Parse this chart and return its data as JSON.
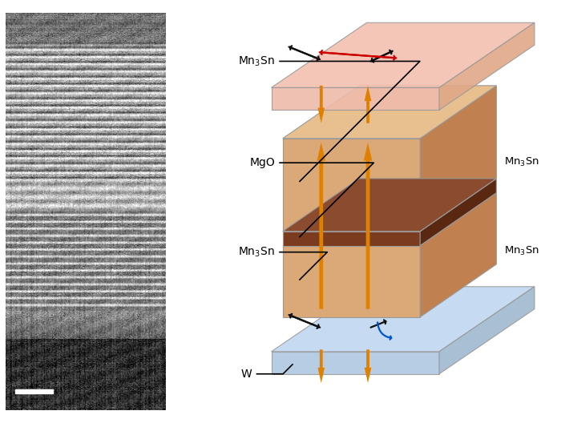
{
  "fig_width": 7.0,
  "fig_height": 5.28,
  "dpi": 100,
  "bg_color": "#ffffff",
  "mn3sn_front": "#dba878",
  "mn3sn_right": "#c08050",
  "mn3sn_top_face": "#e8c090",
  "mgo_front": "#7a3b1e",
  "mgo_right": "#5a2810",
  "mgo_top_face": "#8a4b2e",
  "top_plane_top": "#f2c0b0",
  "top_plane_front": "#eebbaa",
  "top_plane_right": "#e0a888",
  "bot_plane_top": "#c0d8f0",
  "bot_plane_front": "#b0c8e0",
  "bot_plane_right": "#a0b8d0",
  "orange": "#e08000",
  "black": "#111111",
  "red": "#cc0000",
  "blue": "#0055cc",
  "edge_color": "#999999"
}
